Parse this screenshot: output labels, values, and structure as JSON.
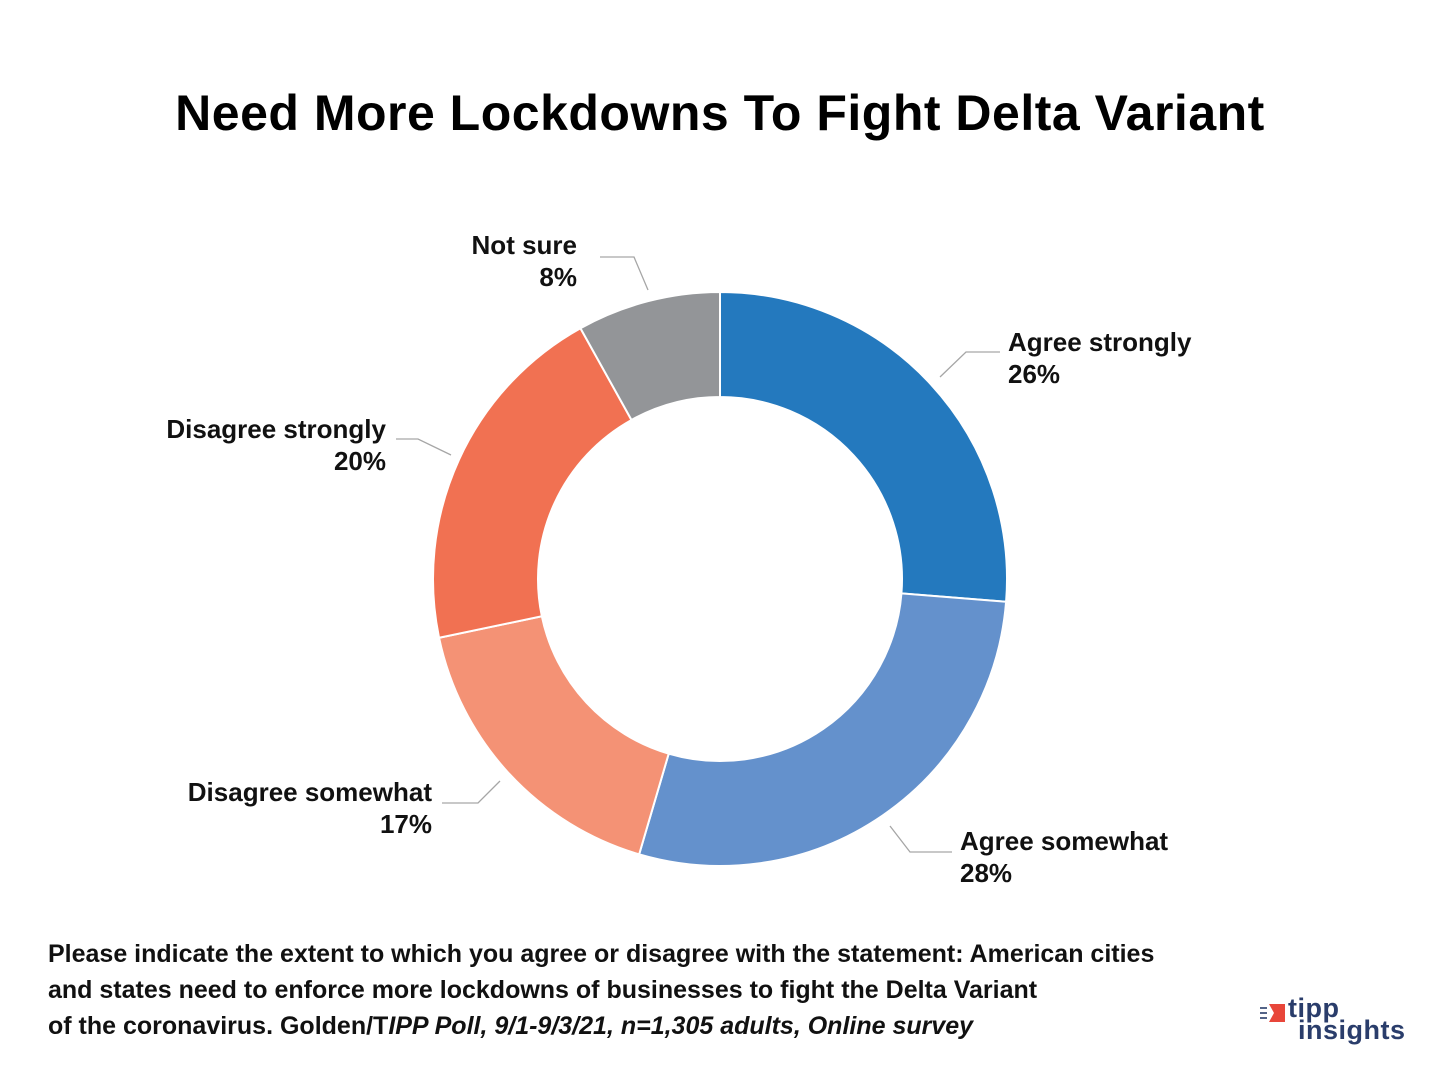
{
  "chart_data": {
    "type": "pie",
    "title": "Need More Lockdowns To Fight Delta Variant",
    "slices": [
      {
        "label": "Agree strongly",
        "value": 26,
        "value_label": "26%",
        "color": "#2479be"
      },
      {
        "label": "Agree somewhat",
        "value": 28,
        "value_label": "28%",
        "color": "#6491cc"
      },
      {
        "label": "Disagree somewhat",
        "value": 17,
        "value_label": "17%",
        "color": "#f49275"
      },
      {
        "label": "Disagree strongly",
        "value": 20,
        "value_label": "20%",
        "color": "#f17152"
      },
      {
        "label": "Not sure",
        "value": 8,
        "value_label": "8%",
        "color": "#939598"
      }
    ],
    "hole": "donut"
  },
  "footnote": {
    "line1": "Please indicate the extent to which you agree or disagree with the statement: American cities",
    "line2": "and states need to enforce more lockdowns of businesses to fight the Delta Variant",
    "line3_regular": "of the coronavirus. Golden/T",
    "line3_italic": "IPP Poll, 9/1-9/3/21, n=1,305 adults, Online survey"
  },
  "logo": {
    "top": "tipp",
    "bottom": "insights",
    "accent_color": "#e8463a",
    "text_color": "#2a3d6b"
  }
}
